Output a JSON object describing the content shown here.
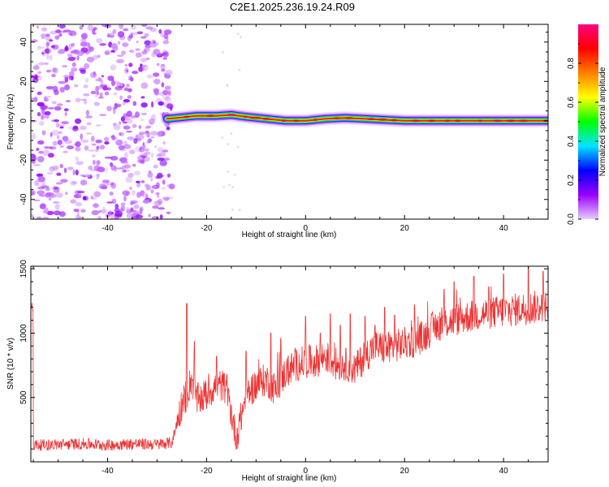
{
  "title": "C2E1.2025.236.19.24.R09",
  "chart_data": [
    {
      "type": "heatmap",
      "title": "C2E1.2025.236.19.24.R09",
      "xlabel": "Height of straight line (km)",
      "ylabel": "Frequency (Hz)",
      "xlim": [
        -55.5,
        49
      ],
      "ylim": [
        -50,
        49
      ],
      "xticks": [
        -40,
        -20,
        0,
        20,
        40
      ],
      "yticks": [
        -40,
        -20,
        0,
        20,
        40
      ],
      "colorbar": {
        "label": "Normalized spectral amplitude",
        "range": [
          0,
          1
        ],
        "ticks": [
          "0.0",
          "0.2",
          "0.4",
          "0.6",
          "0.8"
        ],
        "colors": [
          "#e6ccff",
          "#9900ff",
          "#0000ff",
          "#00e5ff",
          "#00ff00",
          "#ffff00",
          "#ff8000",
          "#ff0000",
          "#ff0080"
        ]
      },
      "noise_region_x": [
        -55.5,
        -27
      ],
      "noise_amplitude": 0.12,
      "signal_center_line": [
        [
          -28,
          1
        ],
        [
          -26,
          1.5
        ],
        [
          -22,
          2.5
        ],
        [
          -18,
          2.5
        ],
        [
          -15,
          3
        ],
        [
          -12,
          2
        ],
        [
          -8,
          1
        ],
        [
          -4,
          0
        ],
        [
          0,
          0
        ],
        [
          4,
          1
        ],
        [
          8,
          1.5
        ],
        [
          12,
          1
        ],
        [
          16,
          0.5
        ],
        [
          20,
          0
        ],
        [
          30,
          0
        ],
        [
          40,
          0
        ],
        [
          49,
          0
        ]
      ],
      "signal_peak_amplitude": 0.85
    },
    {
      "type": "line",
      "xlabel": "Height of straight line (km)",
      "ylabel": "SNR (10 * v/v)",
      "xlim": [
        -55.5,
        49
      ],
      "ylim": [
        0,
        1520
      ],
      "xticks": [
        -40,
        -20,
        0,
        20,
        40
      ],
      "yticks": [
        500,
        1000,
        1500
      ],
      "color": "#ee3333",
      "series": [
        {
          "name": "SNR",
          "x": [
            -55,
            -50,
            -45,
            -40,
            -35,
            -30,
            -27,
            -25,
            -24,
            -23,
            -22,
            -20,
            -18,
            -16,
            -14,
            -12,
            -10,
            -8,
            -6,
            -4,
            -2,
            0,
            2,
            4,
            6,
            8,
            10,
            12,
            14,
            16,
            18,
            20,
            22,
            24,
            26,
            28,
            30,
            32,
            34,
            36,
            38,
            40,
            42,
            44,
            46,
            48
          ],
          "y": [
            130,
            135,
            140,
            130,
            140,
            135,
            150,
            450,
            520,
            650,
            480,
            520,
            600,
            580,
            180,
            520,
            600,
            640,
            560,
            700,
            750,
            780,
            780,
            820,
            760,
            760,
            720,
            820,
            900,
            880,
            900,
            920,
            940,
            980,
            1050,
            1080,
            1100,
            1120,
            1140,
            1150,
            1160,
            1170,
            1180,
            1190,
            1200,
            1210
          ]
        }
      ],
      "spikes": [
        [
          -24,
          1230
        ],
        [
          -22.5,
          900
        ],
        [
          -18,
          820
        ],
        [
          -14,
          100
        ],
        [
          -12,
          860
        ],
        [
          -7,
          1000
        ],
        [
          -5,
          960
        ],
        [
          0,
          1130
        ],
        [
          3,
          1000
        ],
        [
          5,
          1150
        ],
        [
          7,
          1060
        ],
        [
          9,
          1150
        ],
        [
          12,
          1130
        ],
        [
          14,
          1060
        ],
        [
          16,
          1200
        ],
        [
          18,
          1140
        ],
        [
          22,
          1220
        ],
        [
          28,
          1340
        ],
        [
          30,
          1400
        ],
        [
          34,
          1440
        ],
        [
          37,
          1360
        ],
        [
          40,
          1460
        ],
        [
          45,
          1530
        ],
        [
          48,
          1480
        ]
      ],
      "noise_amplitude": 50
    }
  ]
}
